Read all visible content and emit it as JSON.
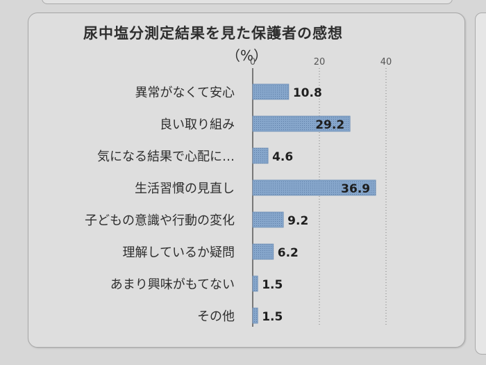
{
  "chart_data": {
    "type": "bar",
    "orientation": "horizontal",
    "title": "尿中塩分測定結果を見た保護者の感想",
    "unit_label": "（%）",
    "categories": [
      "異常がなくて安心",
      "良い取り組み",
      "気になる結果で心配に…",
      "生活習慣の見直し",
      "子どもの意識や行動の変化",
      "理解しているか疑問",
      "あまり興味がもてない",
      "その他"
    ],
    "values": [
      10.8,
      29.2,
      4.6,
      36.9,
      9.2,
      6.2,
      1.5,
      1.5
    ],
    "value_labels": [
      "10.8",
      "29.2",
      "4.6",
      "36.9",
      "9.2",
      "6.2",
      "1.5",
      "1.5"
    ],
    "ticks": [
      0,
      20,
      40
    ],
    "tick_labels": [
      "0",
      "20",
      "40"
    ],
    "xlim": [
      0,
      40
    ],
    "grid": "vertical-dotted",
    "bar_color": "#7e9fc6",
    "text_color": "#2e2e2e"
  }
}
